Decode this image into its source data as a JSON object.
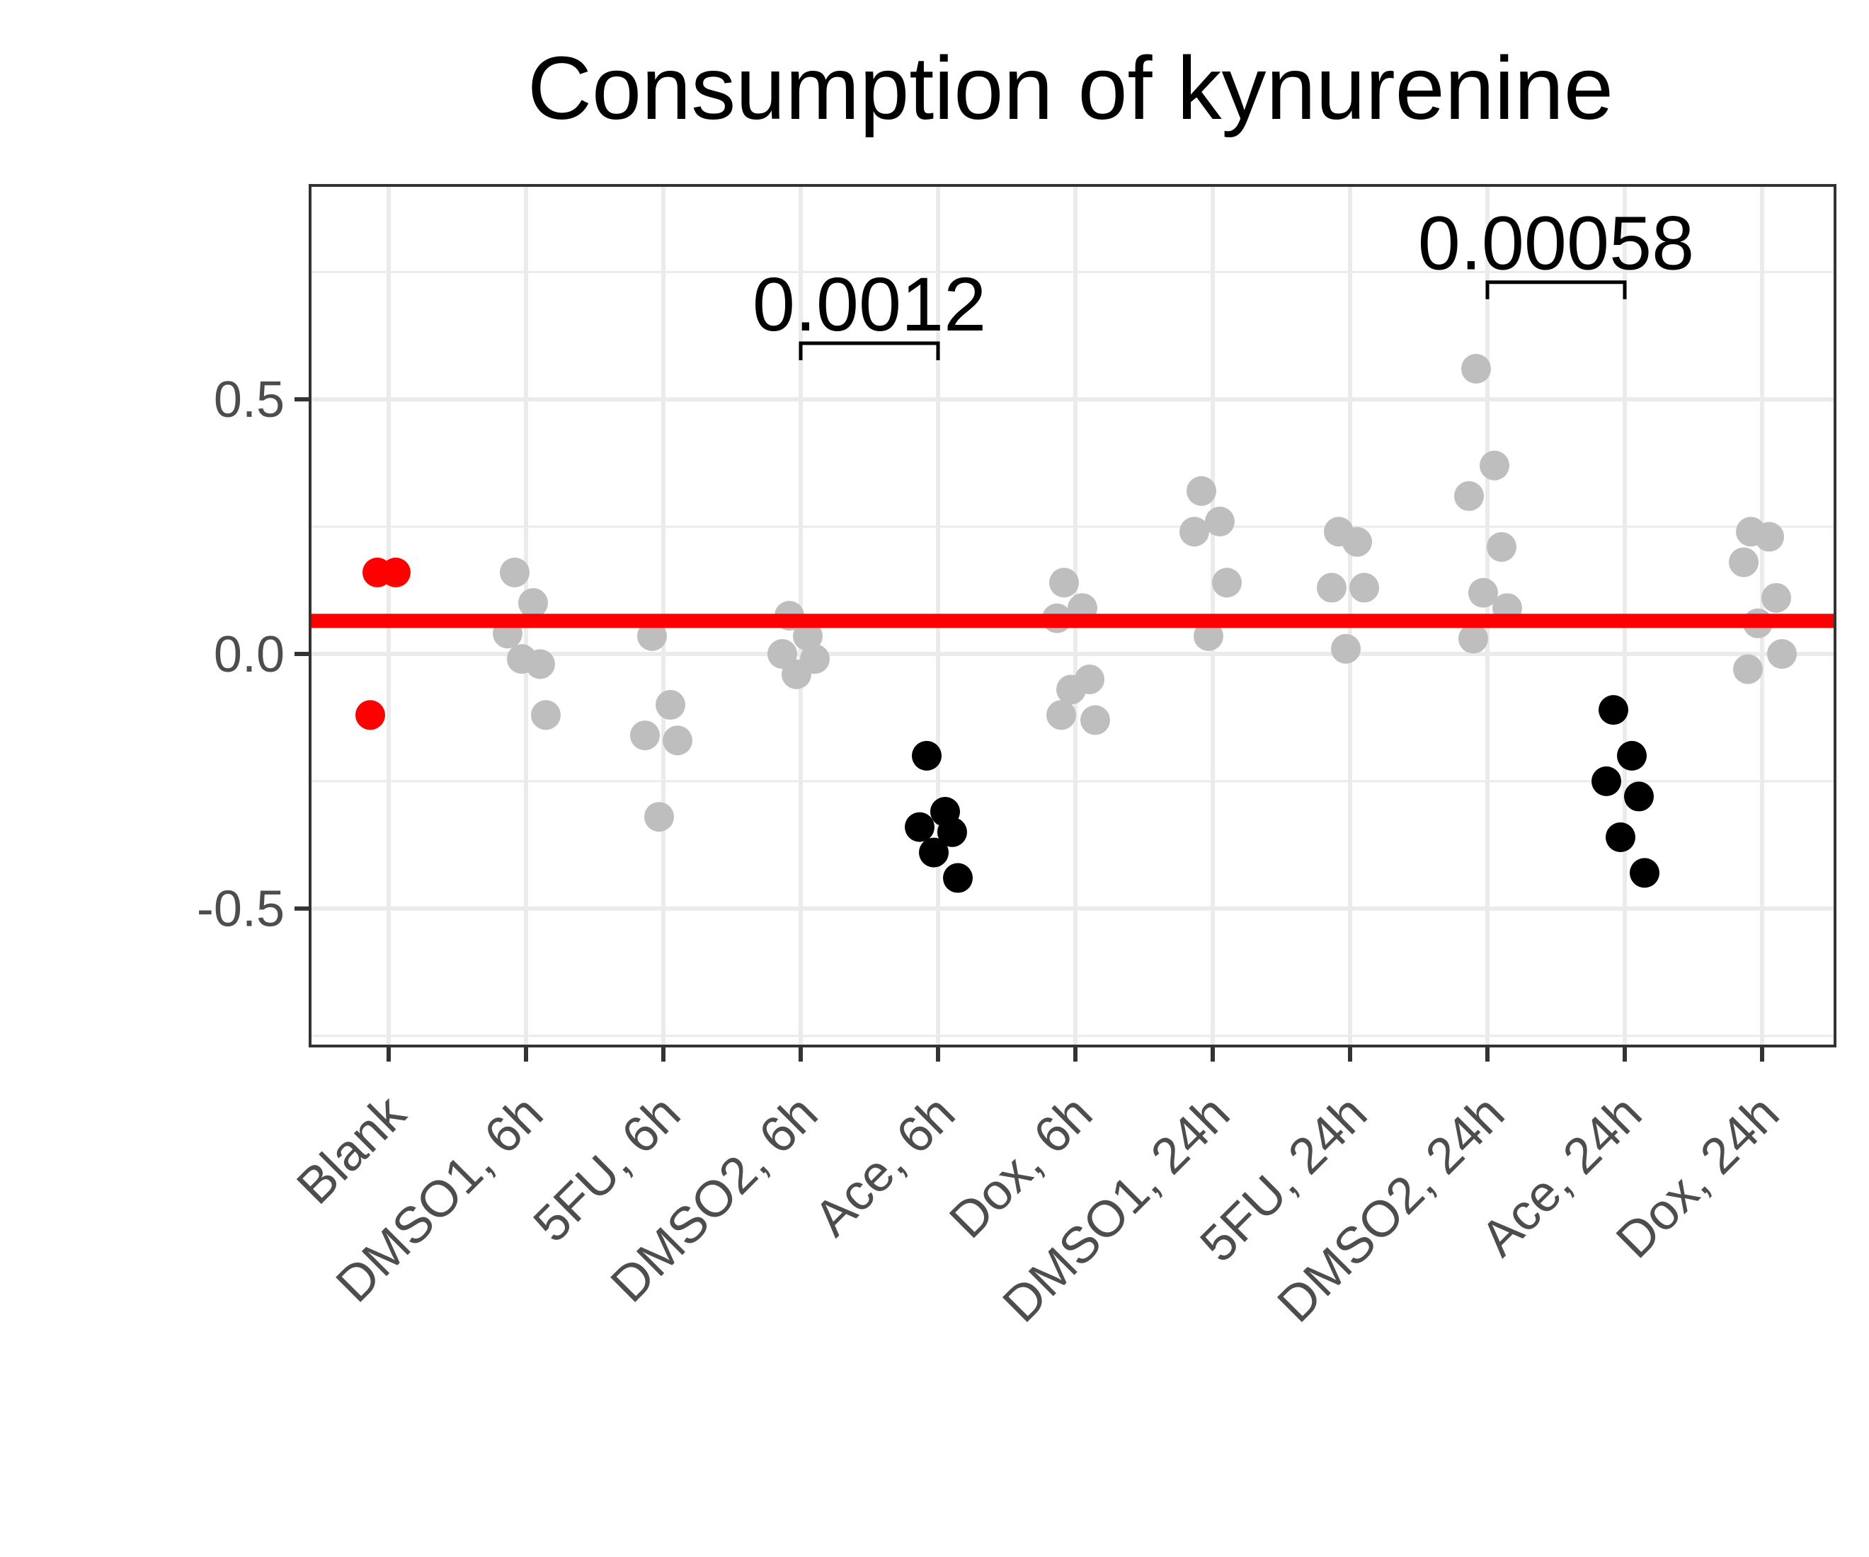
{
  "chart_data": {
    "type": "scatter",
    "title": "Consumption of kynurenine",
    "xlabel": "",
    "ylabel": "",
    "ylim": [
      -0.77,
      0.92
    ],
    "yticks": [
      -0.5,
      0.0,
      0.5
    ],
    "ytick_labels": [
      "-0.5",
      "0.0",
      "0.5"
    ],
    "grid": true,
    "legend": "none",
    "colors": {
      "highlight": "#000000",
      "default": "#bebebe",
      "blank": "#ff0000",
      "reference_line": "#ff0000",
      "grid": "#ebebeb",
      "border": "#333333"
    },
    "reference_line": {
      "y": 0.065,
      "color": "#ff0000"
    },
    "categories": [
      "Blank",
      "DMSO1, 6h",
      "5FU, 6h",
      "DMSO2, 6h",
      "Ace, 6h",
      "Dox, 6h",
      "DMSO1, 24h",
      "5FU, 24h",
      "DMSO2, 24h",
      "Ace, 24h",
      "Dox, 24h"
    ],
    "groups": [
      {
        "category": "Blank",
        "color": "blank",
        "values": [
          0.16,
          0.16,
          -0.12
        ]
      },
      {
        "category": "DMSO1, 6h",
        "color": "default",
        "values": [
          0.16,
          0.1,
          0.04,
          -0.02,
          -0.01,
          -0.12
        ]
      },
      {
        "category": "5FU, 6h",
        "color": "default",
        "values": [
          0.035,
          -0.1,
          -0.16,
          -0.17,
          -0.32
        ]
      },
      {
        "category": "DMSO2, 6h",
        "color": "default",
        "values": [
          0.075,
          0.035,
          0.0,
          -0.01,
          -0.04
        ]
      },
      {
        "category": "Ace, 6h",
        "color": "highlight",
        "values": [
          -0.2,
          -0.31,
          -0.34,
          -0.35,
          -0.39,
          -0.44
        ]
      },
      {
        "category": "Dox, 6h",
        "color": "default",
        "values": [
          0.14,
          0.09,
          0.07,
          -0.05,
          -0.07,
          -0.13,
          -0.12
        ]
      },
      {
        "category": "DMSO1, 24h",
        "color": "default",
        "values": [
          0.32,
          0.26,
          0.24,
          0.14,
          0.035
        ]
      },
      {
        "category": "5FU, 24h",
        "color": "default",
        "values": [
          0.24,
          0.22,
          0.13,
          0.13,
          0.01
        ]
      },
      {
        "category": "DMSO2, 24h",
        "color": "default",
        "values": [
          0.56,
          0.37,
          0.31,
          0.21,
          0.12,
          0.09,
          0.03
        ]
      },
      {
        "category": "Ace, 24h",
        "color": "highlight",
        "values": [
          -0.11,
          -0.2,
          -0.25,
          -0.28,
          -0.36,
          -0.43
        ]
      },
      {
        "category": "Dox, 24h",
        "color": "default",
        "values": [
          0.24,
          0.23,
          0.18,
          0.11,
          0.06,
          0.0,
          -0.03
        ]
      }
    ],
    "annotations": [
      {
        "label": "0.0012",
        "from": "DMSO2, 6h",
        "to": "Ace, 6h",
        "y": 0.61
      },
      {
        "label": "0.00058",
        "from": "DMSO2, 24h",
        "to": "Ace, 24h",
        "y": 0.73
      }
    ]
  }
}
